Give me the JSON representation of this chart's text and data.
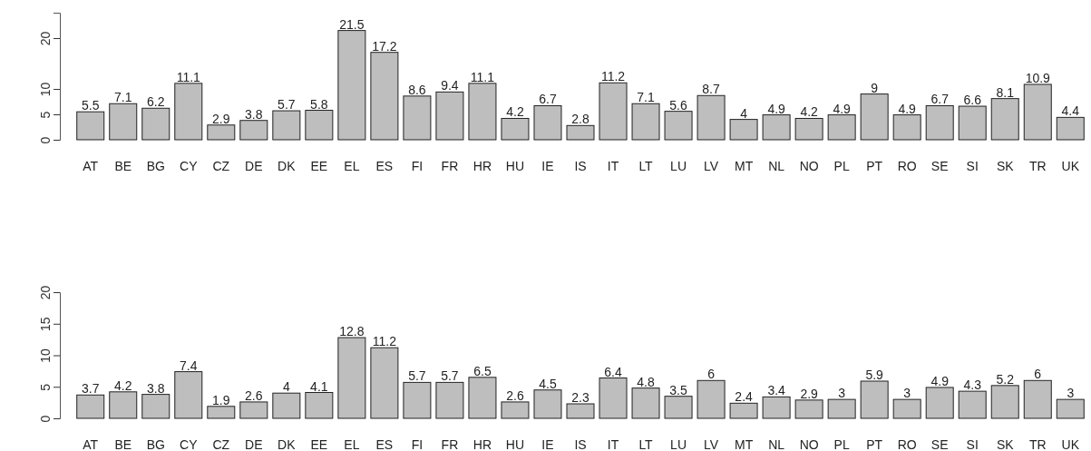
{
  "chart_data": [
    {
      "type": "bar",
      "categories": [
        "AT",
        "BE",
        "BG",
        "CY",
        "CZ",
        "DE",
        "DK",
        "EE",
        "EL",
        "ES",
        "FI",
        "FR",
        "HR",
        "HU",
        "IE",
        "IS",
        "IT",
        "LT",
        "LU",
        "LV",
        "MT",
        "NL",
        "NO",
        "PL",
        "PT",
        "RO",
        "SE",
        "SI",
        "SK",
        "TR",
        "UK"
      ],
      "values": [
        5.5,
        7.1,
        6.2,
        11.1,
        2.9,
        3.8,
        5.7,
        5.8,
        21.5,
        17.2,
        8.6,
        9.4,
        11.1,
        4.2,
        6.7,
        2.8,
        11.2,
        7.1,
        5.6,
        8.7,
        4,
        4.9,
        4.2,
        4.9,
        9,
        4.9,
        6.7,
        6.6,
        8.1,
        10.9,
        4.4
      ],
      "color": "#bebebe",
      "ylim": [
        0,
        25
      ],
      "yticks": [
        0,
        5,
        10,
        20
      ],
      "data_labels": true
    },
    {
      "type": "bar",
      "categories": [
        "AT",
        "BE",
        "BG",
        "CY",
        "CZ",
        "DE",
        "DK",
        "EE",
        "EL",
        "ES",
        "FI",
        "FR",
        "HR",
        "HU",
        "IE",
        "IS",
        "IT",
        "LT",
        "LU",
        "LV",
        "MT",
        "NL",
        "NO",
        "PL",
        "PT",
        "RO",
        "SE",
        "SI",
        "SK",
        "TR",
        "UK"
      ],
      "values": [
        3.7,
        4.2,
        3.8,
        7.4,
        1.9,
        2.6,
        4,
        4.1,
        12.8,
        11.2,
        5.7,
        5.7,
        6.5,
        2.6,
        4.5,
        2.3,
        6.4,
        4.8,
        3.5,
        6,
        2.4,
        3.4,
        2.9,
        3,
        5.9,
        3,
        4.9,
        4.3,
        5.2,
        6,
        3
      ],
      "color": "#bebebe",
      "ylim": [
        0,
        20
      ],
      "yticks": [
        0,
        5,
        10,
        15,
        20
      ],
      "data_labels": true
    }
  ]
}
